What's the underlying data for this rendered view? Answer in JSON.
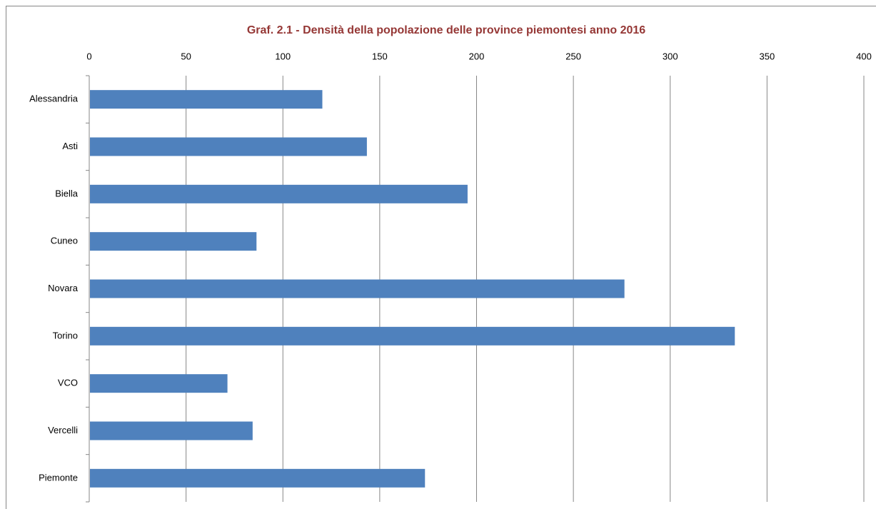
{
  "chart_data": {
    "type": "bar",
    "orientation": "horizontal",
    "title": "Graf. 2.1 - Densità della popolazione delle province piemontesi anno 2016",
    "categories": [
      "Alessandria",
      "Asti",
      "Biella",
      "Cuneo",
      "Novara",
      "Torino",
      "VCO",
      "Vercelli",
      "Piemonte"
    ],
    "values": [
      120,
      143,
      195,
      86,
      276,
      333,
      71,
      84,
      173
    ],
    "color": "#4f81bd",
    "xlim": [
      0,
      400
    ],
    "xticks": [
      0,
      50,
      100,
      150,
      200,
      250,
      300,
      350,
      400
    ],
    "grid": true
  }
}
